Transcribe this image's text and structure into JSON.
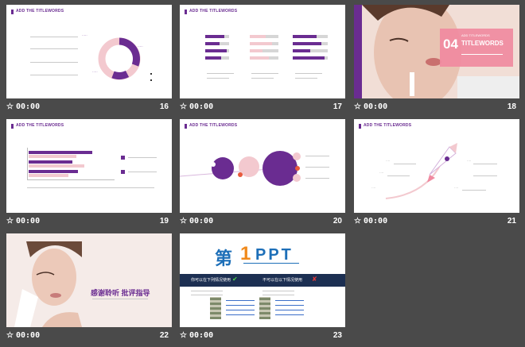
{
  "colors": {
    "background": "#4a4a4a",
    "accent": "#6a2c91",
    "accent_pink": "#f3c9cf"
  },
  "slides": [
    {
      "number": "16",
      "time": "00:00",
      "header": "ADD THE TITLEWORDS"
    },
    {
      "number": "17",
      "time": "00:00",
      "header": "ADD THE TITLEWORDS"
    },
    {
      "number": "18",
      "time": "00:00",
      "section_number": "04",
      "section_title": "TITLEWORDS",
      "section_sub": "ADD TITLEWORDS"
    },
    {
      "number": "19",
      "time": "00:00",
      "header": "ADD THE TITLEWORDS"
    },
    {
      "number": "20",
      "time": "00:00",
      "header": "ADD THE TITLEWORDS"
    },
    {
      "number": "21",
      "time": "00:00",
      "header": "ADD THE TITLEWORDS"
    },
    {
      "number": "22",
      "time": "00:00",
      "thanks_text": "感谢聆听 批评指导"
    },
    {
      "number": "23",
      "time": "00:00",
      "logo_left": "第",
      "logo_digit": "1",
      "logo_right": "PPT",
      "bar_left": "你可以在下列情况使用",
      "bar_right": "不可以在以下情况使用"
    }
  ],
  "star_symbol": "☆"
}
